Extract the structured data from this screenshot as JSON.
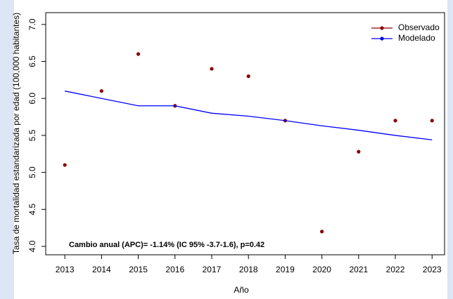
{
  "chart_data": {
    "type": "line",
    "xlabel": "Año",
    "ylabel": "Tasa de mortalidad estandarizada por edad (100,000 habitantes)",
    "annotation": "Cambio anual (APC)= -1.14% (IC 95% -3.7-1.6), p=0.42",
    "x": [
      2013,
      2014,
      2015,
      2016,
      2017,
      2018,
      2019,
      2020,
      2021,
      2022,
      2023
    ],
    "series": [
      {
        "name": "Observado",
        "color": "#8b0000",
        "style": "points",
        "values": [
          5.1,
          6.1,
          6.6,
          5.9,
          6.4,
          6.3,
          5.7,
          4.2,
          5.28,
          5.7,
          5.7
        ]
      },
      {
        "name": "Modelado",
        "color": "#0000ff",
        "style": "line",
        "values": [
          6.1,
          6.0,
          5.9,
          5.9,
          5.8,
          5.76,
          5.7,
          5.63,
          5.57,
          5.5,
          5.44
        ]
      }
    ],
    "xlim": [
      2012.48,
      2023.34
    ],
    "xticks": [
      2013,
      2014,
      2015,
      2016,
      2017,
      2018,
      2019,
      2020,
      2021,
      2022,
      2023
    ],
    "ylim": [
      3.886,
      7.16
    ],
    "yticks": [
      {
        "value": 4,
        "label": "4.0"
      },
      {
        "value": 4.5,
        "label": "4.5"
      },
      {
        "value": 5,
        "label": "5.0"
      },
      {
        "value": 5.5,
        "label": "5.5"
      },
      {
        "value": 6,
        "label": "6.0"
      },
      {
        "value": 6.5,
        "label": "6.5"
      },
      {
        "value": 7,
        "label": "7.0"
      }
    ],
    "legend": "top-right"
  }
}
